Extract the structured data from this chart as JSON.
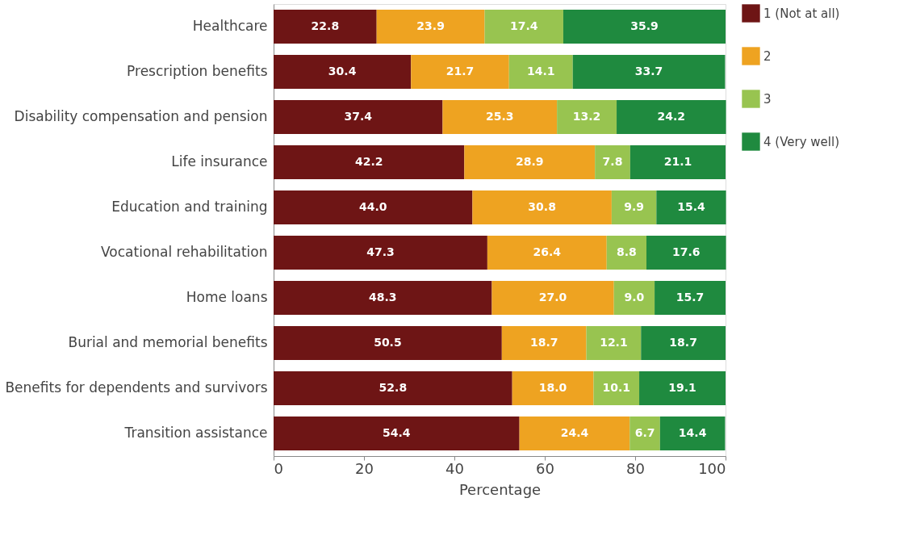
{
  "chart_data": {
    "type": "bar",
    "orientation": "horizontal",
    "stacked": true,
    "xlabel": "Percentage",
    "xlim": [
      0,
      100
    ],
    "xticks": [
      0,
      20,
      40,
      60,
      80,
      100
    ],
    "grid": false,
    "legend": "right",
    "categories": [
      "Healthcare",
      "Prescription benefits",
      "Disability compensation and pension",
      "Life insurance",
      "Education and training",
      "Vocational rehabilitation",
      "Home loans",
      "Burial and memorial benefits",
      "Benefits for dependents and survivors",
      "Transition assistance"
    ],
    "series": [
      {
        "name": "1 (Not at all)",
        "color": "#6e1515",
        "values": [
          22.8,
          30.4,
          37.4,
          42.2,
          44.0,
          47.3,
          48.3,
          50.5,
          52.8,
          54.4
        ],
        "value_labels": [
          "22.8",
          "30.4",
          "37.4",
          "42.2",
          "44.0",
          "47.3",
          "48.3",
          "50.5",
          "52.8",
          "54.4"
        ]
      },
      {
        "name": "2",
        "color": "#eea321",
        "values": [
          23.9,
          21.7,
          25.3,
          28.9,
          30.8,
          26.4,
          27.0,
          18.7,
          18.0,
          24.4
        ],
        "value_labels": [
          "23.9",
          "21.7",
          "25.3",
          "28.9",
          "30.8",
          "26.4",
          "27.0",
          "18.7",
          "18.0",
          "24.4"
        ]
      },
      {
        "name": "3",
        "color": "#98c450",
        "values": [
          17.4,
          14.1,
          13.2,
          7.8,
          9.9,
          8.8,
          9.0,
          12.1,
          10.1,
          6.7
        ],
        "value_labels": [
          "17.4",
          "14.1",
          "13.2",
          "7.8",
          "9.9",
          "8.8",
          "9.0",
          "12.1",
          "10.1",
          "6.7"
        ]
      },
      {
        "name": "4 (Very well)",
        "color": "#1f8a3f",
        "values": [
          35.9,
          33.7,
          24.2,
          21.1,
          15.4,
          17.6,
          15.7,
          18.7,
          19.1,
          14.4
        ],
        "value_labels": [
          "35.9",
          "33.7",
          "24.2",
          "21.1",
          "15.4",
          "17.6",
          "15.7",
          "18.7",
          "19.1",
          "14.4"
        ]
      }
    ]
  }
}
